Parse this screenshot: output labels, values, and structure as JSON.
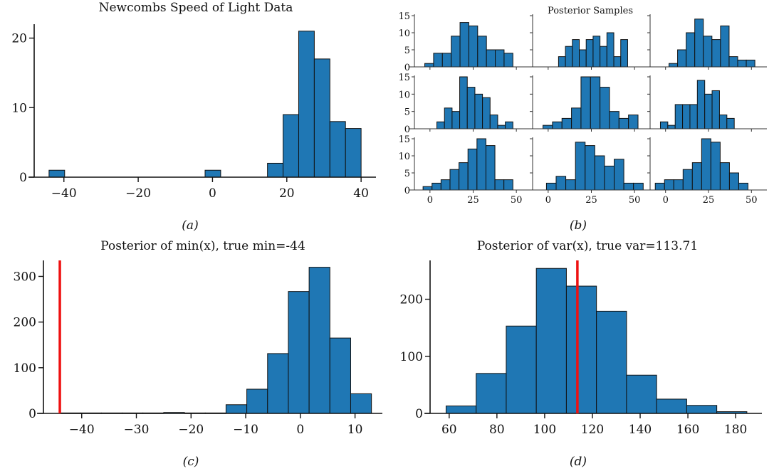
{
  "chart_data": [
    {
      "id": "a",
      "type": "bar",
      "title": "Newcombs Speed of Light Data",
      "caption": "(a)",
      "xlabel": "",
      "ylabel": "",
      "xlim": [
        -48,
        44
      ],
      "ylim": [
        0,
        22
      ],
      "xticks": [
        -40,
        -20,
        0,
        20,
        40
      ],
      "xtick_labels": [
        "−40",
        "−20",
        "0",
        "20",
        "40"
      ],
      "yticks": [
        0,
        10,
        20
      ],
      "ytick_labels": [
        "0",
        "10",
        "20"
      ],
      "bin_start": -44,
      "bin_width": 4.2,
      "values": [
        1,
        0,
        0,
        0,
        0,
        0,
        0,
        0,
        0,
        0,
        1,
        0,
        0,
        0,
        2,
        9,
        21,
        17,
        8,
        7
      ],
      "grid": false
    },
    {
      "id": "b",
      "type": "bar",
      "title": "Posterior Samples",
      "caption": "(b)",
      "layout": "3x3 small multiples",
      "ylim": [
        0,
        15
      ],
      "yticks": [
        0,
        5,
        10,
        15
      ],
      "ytick_labels": [
        "0",
        "5",
        "10",
        "15"
      ],
      "xticks": [
        0,
        25,
        50
      ],
      "xtick_labels": [
        "0",
        "25",
        "50"
      ],
      "xlim": [
        -9,
        59
      ],
      "grid": false,
      "subplots": [
        {
          "bin_start": -3,
          "bin_width": 5.1,
          "values": [
            1,
            4,
            4,
            9,
            13,
            12,
            9,
            5,
            5,
            4
          ]
        },
        {
          "bin_start": 6,
          "bin_width": 4.0,
          "values": [
            3,
            6,
            8,
            5,
            8,
            9,
            6,
            10,
            3,
            8
          ]
        },
        {
          "bin_start": 2,
          "bin_width": 5.0,
          "values": [
            1,
            5,
            10,
            14,
            9,
            8,
            12,
            3,
            2,
            2
          ]
        },
        {
          "bin_start": 4,
          "bin_width": 4.4,
          "values": [
            2,
            6,
            5,
            15,
            12,
            10,
            9,
            4,
            1,
            2
          ]
        },
        {
          "bin_start": -3,
          "bin_width": 5.5,
          "values": [
            1,
            2,
            3,
            6,
            15,
            15,
            12,
            5,
            3,
            4
          ]
        },
        {
          "bin_start": -3,
          "bin_width": 4.3,
          "values": [
            2,
            1,
            7,
            7,
            7,
            14,
            10,
            11,
            4,
            3
          ]
        },
        {
          "bin_start": -4,
          "bin_width": 5.2,
          "values": [
            1,
            2,
            3,
            6,
            8,
            12,
            15,
            13,
            3,
            3
          ]
        },
        {
          "bin_start": -1,
          "bin_width": 5.6,
          "values": [
            2,
            4,
            3,
            14,
            13,
            10,
            7,
            9,
            2,
            2
          ]
        },
        {
          "bin_start": -6,
          "bin_width": 5.4,
          "values": [
            2,
            3,
            3,
            6,
            8,
            15,
            14,
            8,
            5,
            2
          ]
        }
      ]
    },
    {
      "id": "c",
      "type": "bar",
      "title": "Posterior of min(x), true min=-44",
      "caption": "(c)",
      "xlim": [
        -47,
        15
      ],
      "ylim": [
        0,
        335
      ],
      "xticks": [
        -40,
        -30,
        -20,
        -10,
        0,
        10
      ],
      "xtick_labels": [
        "−40",
        "−30",
        "−20",
        "−10",
        "0",
        "10"
      ],
      "yticks": [
        0,
        100,
        200,
        300
      ],
      "ytick_labels": [
        "0",
        "100",
        "200",
        "300"
      ],
      "bin_start": -44,
      "bin_width": 3.8,
      "values": [
        1,
        1,
        1,
        1,
        1,
        2,
        1,
        1,
        19,
        53,
        131,
        267,
        320,
        165,
        43
      ],
      "reference_line": {
        "x": -44,
        "color": "#ee1111",
        "label": "true min"
      },
      "grid": false
    },
    {
      "id": "d",
      "type": "bar",
      "title": "Posterior of var(x), true var=113.71",
      "caption": "(d)",
      "xlim": [
        52,
        191
      ],
      "ylim": [
        0,
        268
      ],
      "xticks": [
        60,
        80,
        100,
        120,
        140,
        160,
        180
      ],
      "xtick_labels": [
        "60",
        "80",
        "100",
        "120",
        "140",
        "160",
        "180"
      ],
      "yticks": [
        0,
        100,
        200
      ],
      "ytick_labels": [
        "0",
        "100",
        "200"
      ],
      "bin_start": 58.7,
      "bin_width": 12.6,
      "values": [
        13,
        70,
        153,
        254,
        223,
        179,
        67,
        25,
        14,
        3
      ],
      "reference_line": {
        "x": 113.71,
        "color": "#ee1111",
        "label": "true var"
      },
      "grid": false
    }
  ],
  "colors": {
    "bar_fill": "#1f77b4",
    "bar_edge": "#111111",
    "reference_line": "#ee1111"
  }
}
